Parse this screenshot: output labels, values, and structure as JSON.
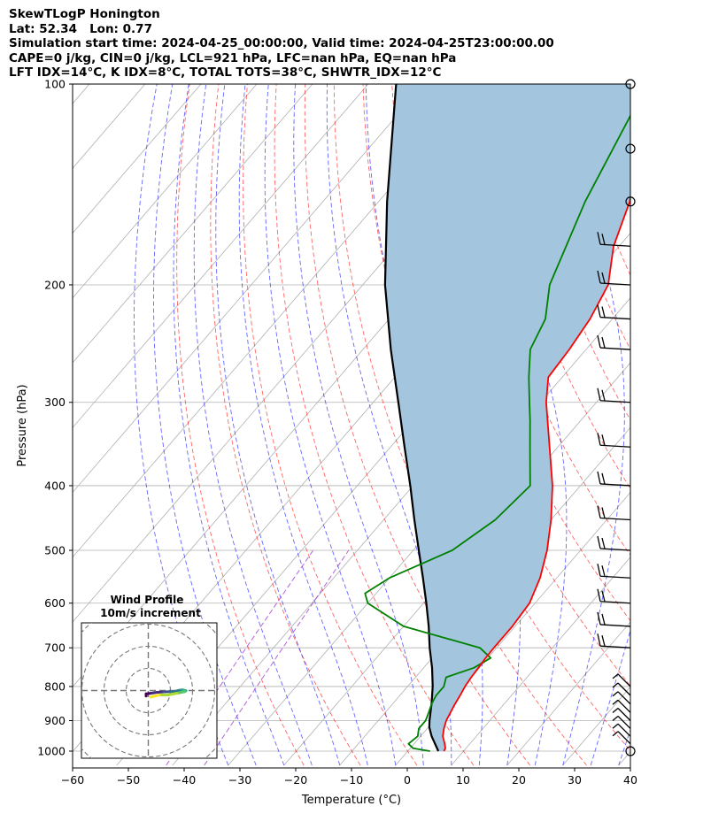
{
  "title_lines": [
    "SkewTLogP Honington",
    "Lat: 52.34   Lon: 0.77",
    "Simulation start time: 2024-04-25_00:00:00, Valid time: 2024-04-25T23:00:00.00",
    "CAPE=0 j/kg, CIN=0 j/kg, LCL=921 hPa, LFC=nan hPa, EQ=nan hPa",
    "LFT IDX=14°C, K IDX=8°C, TOTAL TOTS=38°C, SHWTR_IDX=12°C"
  ],
  "chart_data": {
    "type": "line",
    "subtype": "skew-t log-p",
    "xlabel": "Temperature (°C)",
    "ylabel": "Pressure (hPa)",
    "x_ticks": [
      "−60",
      "−50",
      "−40",
      "−30",
      "−20",
      "−10",
      "0",
      "10",
      "20",
      "30",
      "40"
    ],
    "x_tick_values": [
      -60,
      -50,
      -40,
      -30,
      -20,
      -10,
      0,
      10,
      20,
      30,
      40
    ],
    "y_ticks": [
      "100",
      "200",
      "300",
      "400",
      "500",
      "600",
      "700",
      "800",
      "900",
      "1000"
    ],
    "y_tick_values": [
      100,
      200,
      300,
      400,
      500,
      600,
      700,
      800,
      900,
      1000
    ],
    "xlim": [
      -60,
      40
    ],
    "ylim": [
      1050,
      100
    ],
    "y_scale": "log",
    "grid": true,
    "colors": {
      "temperature": "#ff0000",
      "dewpoint": "#008000",
      "parcel": "#000000",
      "cape_fill": "#a3c6de",
      "dry_adiabats": "#ff0000",
      "moist_adiabats": "#0000ff",
      "mixing_ratio": "#9933cc"
    },
    "temperature": {
      "pressure": [
        1000,
        990,
        975,
        950,
        925,
        900,
        875,
        850,
        825,
        800,
        775,
        750,
        725,
        700,
        650,
        600,
        550,
        500,
        450,
        400,
        350,
        300,
        275,
        250,
        225,
        200,
        175,
        150,
        125,
        100
      ],
      "values": [
        6.5,
        6.3,
        5.5,
        4.0,
        3.0,
        2.2,
        1.7,
        1.2,
        0.8,
        0.3,
        0,
        -0.2,
        -0.4,
        -0.5,
        -0.5,
        -1.0,
        -3.0,
        -6.0,
        -10.0,
        -15.0,
        -21.5,
        -29.0,
        -32.5,
        -33.0,
        -34.0,
        -36.0,
        -41.0,
        -45.0,
        -51.5,
        -60.5
      ]
    },
    "dewpoint": {
      "pressure": [
        1000,
        990,
        975,
        950,
        925,
        900,
        875,
        850,
        825,
        800,
        775,
        750,
        725,
        700,
        650,
        600,
        580,
        550,
        500,
        450,
        400,
        350,
        320,
        300,
        275,
        250,
        225,
        200,
        150,
        100
      ],
      "values": [
        4.0,
        0.5,
        -1.0,
        -0.5,
        -1.5,
        -1.5,
        -2.2,
        -3.0,
        -3.5,
        -3.5,
        -4.5,
        -1.0,
        0.5,
        -3.0,
        -20.0,
        -30.0,
        -32.0,
        -30.0,
        -23.0,
        -20.0,
        -19.0,
        -25.0,
        -29.0,
        -32.0,
        -36.0,
        -40.0,
        -42.0,
        -46.5,
        -53.0,
        -60.0
      ]
    },
    "parcel": {
      "pressure": [
        1000,
        950,
        921,
        900,
        850,
        800,
        750,
        700,
        650,
        600,
        550,
        500,
        450,
        400,
        350,
        300,
        250,
        200,
        150,
        100
      ],
      "values": [
        5.5,
        2.0,
        0.2,
        -0.8,
        -3.0,
        -5.5,
        -8.5,
        -12.0,
        -15.5,
        -19.5,
        -24.0,
        -29.0,
        -34.5,
        -40.5,
        -47.5,
        -55.5,
        -65.0,
        -76.0,
        -88.5,
        -105.0
      ]
    },
    "wind_barb_pressures": [
      1000,
      975,
      950,
      925,
      900,
      875,
      850,
      825,
      800,
      700,
      650,
      600,
      550,
      500,
      450,
      400,
      350,
      300,
      250,
      225,
      200,
      175,
      150,
      125,
      100
    ],
    "inset": {
      "title": "Wind Profile",
      "subtitle": "10m/s increment",
      "rings": [
        10,
        20,
        30,
        40
      ],
      "hodograph_u": [
        -1.0,
        -1.0,
        1.5,
        4.0,
        7.0,
        10.0,
        12.0,
        14.5,
        15.5,
        17.0,
        16.5,
        13.0,
        9.0,
        5.0,
        1.0
      ],
      "hodograph_v": [
        -2.5,
        -1.5,
        -1.2,
        -0.8,
        -0.6,
        -0.5,
        -0.4,
        0.2,
        0.3,
        -0.1,
        -0.5,
        -1.2,
        -2.0,
        -2.0,
        -3.0
      ]
    }
  }
}
